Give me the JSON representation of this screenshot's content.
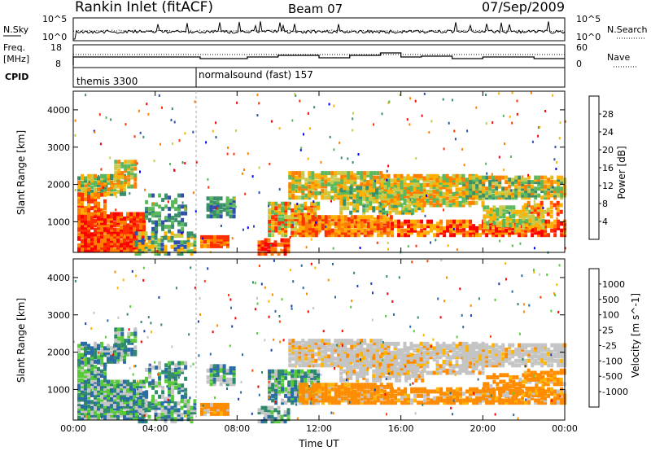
{
  "header": {
    "title": "Rankin Inlet (fitACF)",
    "beam": "Beam 07",
    "date": "07/Sep/2009"
  },
  "status_panels": {
    "nsky_label": "N.Sky",
    "nsky_scale_top": "10^5",
    "nsky_scale_bottom": "10^0",
    "nsearch_label": "N.Search",
    "nsearch_scale_top": "10^5",
    "nsearch_scale_bottom": "10^0",
    "freq_label": "Freq.",
    "freq_unit": "[MHz]",
    "freq_ticks": [
      "18",
      "8"
    ],
    "nave_label": "Nave",
    "nave_ticks": [
      "60",
      "0"
    ],
    "cpid_label": "CPID",
    "cpid_segments": [
      {
        "label": "themis 3300",
        "start_hour": 0,
        "end_hour": 6
      },
      {
        "label": "normalsound (fast) 157",
        "start_hour": 6,
        "end_hour": 24
      }
    ]
  },
  "colors": {
    "power_scale": [
      "#0000ff",
      "#2f4fa8",
      "#3a8f6a",
      "#5cb85c",
      "#c9c94a",
      "#ffb000",
      "#ff7f00",
      "#ff3000",
      "#ff0000"
    ],
    "velocity_scale": [
      "#1f3faf",
      "#2b6ba6",
      "#2e8a6a",
      "#57c93a",
      "#c4c4c4",
      "#ffb400",
      "#ff8c00",
      "#ff4500",
      "#ff0000"
    ]
  },
  "chart_data": [
    {
      "type": "heatmap",
      "name": "Power",
      "xlabel": "",
      "ylabel": "Slant Range [km]",
      "x_ticks": [
        "00:00",
        "04:00",
        "08:00",
        "12:00",
        "16:00",
        "20:00",
        "00:00"
      ],
      "xlim_hours": [
        0,
        24
      ],
      "ylim": [
        180,
        4500
      ],
      "y_ticks": [
        "1000",
        "2000",
        "3000",
        "4000"
      ],
      "colorbar_label": "Power [dB]",
      "colorbar_ticks": [
        "28",
        "24",
        "20",
        "16",
        "12",
        "8",
        "4"
      ],
      "colorbar_range": [
        0,
        30
      ]
    },
    {
      "type": "heatmap",
      "name": "Velocity",
      "xlabel": "Time UT",
      "ylabel": "Slant Range [km]",
      "x_ticks": [
        "00:00",
        "04:00",
        "08:00",
        "12:00",
        "16:00",
        "20:00",
        "00:00"
      ],
      "xlim_hours": [
        0,
        24
      ],
      "ylim": [
        180,
        4500
      ],
      "y_ticks": [
        "1000",
        "2000",
        "3000",
        "4000"
      ],
      "colorbar_label": "Velocity [m s^-1]",
      "colorbar_ticks": [
        "1000",
        "500",
        "100",
        "25",
        "-25",
        "-100",
        "-500",
        "-1000"
      ]
    }
  ]
}
